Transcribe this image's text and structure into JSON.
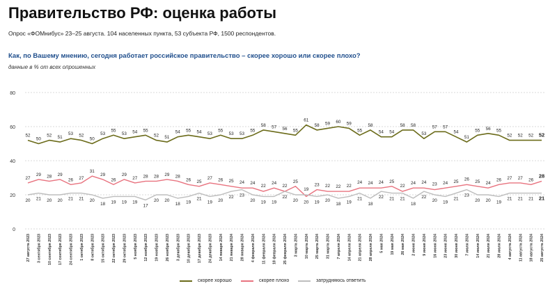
{
  "header": {
    "title": "Правительство РФ: оценка работы",
    "subtitle": "Опрос «ФОМнибус» 23–25 августа. 104 населенных пункта, 53 субъекта РФ, 1500 респондентов.",
    "question": "Как, по Вашему мнению, сегодня работает российское правительство – скорее хорошо или скорее плохо?",
    "note": "данные в % от всех опрошенных"
  },
  "chart_data": {
    "type": "line",
    "ylim": [
      0,
      80
    ],
    "yticks": [
      "0",
      "20",
      "40",
      "60",
      "80"
    ],
    "grid": "horizontal",
    "legend_position": "bottom",
    "categories": [
      "27 августа 2023",
      "3 сентября 2023",
      "10 сентября 2023",
      "17 сентября 2023",
      "24 сентября 2023",
      "1 октября 2023",
      "8 октября 2023",
      "15 октября 2023",
      "22 октября 2023",
      "29 октября 2023",
      "5 ноября 2023",
      "12 ноября 2023",
      "19 ноября 2023",
      "26 ноября 2023",
      "3 декабря 2023",
      "10 декабря 2023",
      "17 декабря 2023",
      "24 декабря 2023",
      "14 января 2024",
      "21 января 2024",
      "28 января 2024",
      "4 февраля 2024",
      "11 февраля 2024",
      "18 февраля 2024",
      "25 февраля 2024",
      "3 марта 2024",
      "10 марта 2024",
      "25 марта 2024",
      "31 марта 2024",
      "7 апреля 2024",
      "14 апреля 2024",
      "21 апреля 2024",
      "28 апреля 2024",
      "5 мая 2024",
      "19 мая 2024",
      "26 мая 2024",
      "2 июня 2024",
      "9 июня 2024",
      "16 июня 2024",
      "23 июня 2024",
      "30 июня 2024",
      "7 июля 2024",
      "14 июля 2024",
      "21 июля 2024",
      "28 июля 2024",
      "4 августа 2024",
      "11 августа 2024",
      "18 августа 2024",
      "25 августа 2024"
    ],
    "series": [
      {
        "name": "скорее хорошо",
        "color": "#6b6b1a",
        "values": [
          52,
          50,
          52,
          51,
          53,
          52,
          50,
          53,
          55,
          53,
          54,
          55,
          52,
          51,
          54,
          55,
          54,
          53,
          55,
          53,
          53,
          55,
          58,
          57,
          56,
          55,
          61,
          58,
          59,
          60,
          59,
          55,
          58,
          54,
          54,
          58,
          58,
          53,
          57,
          57,
          54,
          51,
          55,
          56,
          55,
          52,
          52,
          52,
          52
        ]
      },
      {
        "name": "скорее плохо",
        "color": "#e8737f",
        "values": [
          27,
          29,
          28,
          29,
          26,
          27,
          31,
          29,
          26,
          29,
          27,
          28,
          28,
          29,
          28,
          26,
          25,
          27,
          26,
          25,
          24,
          24,
          22,
          24,
          22,
          25,
          19,
          23,
          22,
          22,
          22,
          24,
          24,
          24,
          25,
          22,
          24,
          24,
          23,
          24,
          25,
          26,
          25,
          24,
          26,
          27,
          27,
          26,
          28
        ]
      },
      {
        "name": "затрудняюсь ответить",
        "color": "#bdbdbd",
        "values": [
          20,
          21,
          20,
          20,
          21,
          21,
          20,
          18,
          19,
          19,
          19,
          17,
          20,
          20,
          18,
          19,
          21,
          19,
          20,
          22,
          23,
          20,
          19,
          19,
          22,
          20,
          20,
          19,
          20,
          18,
          19,
          21,
          18,
          22,
          21,
          21,
          18,
          22,
          20,
          19,
          21,
          23,
          20,
          20,
          19,
          21,
          21,
          21,
          21
        ]
      }
    ]
  }
}
